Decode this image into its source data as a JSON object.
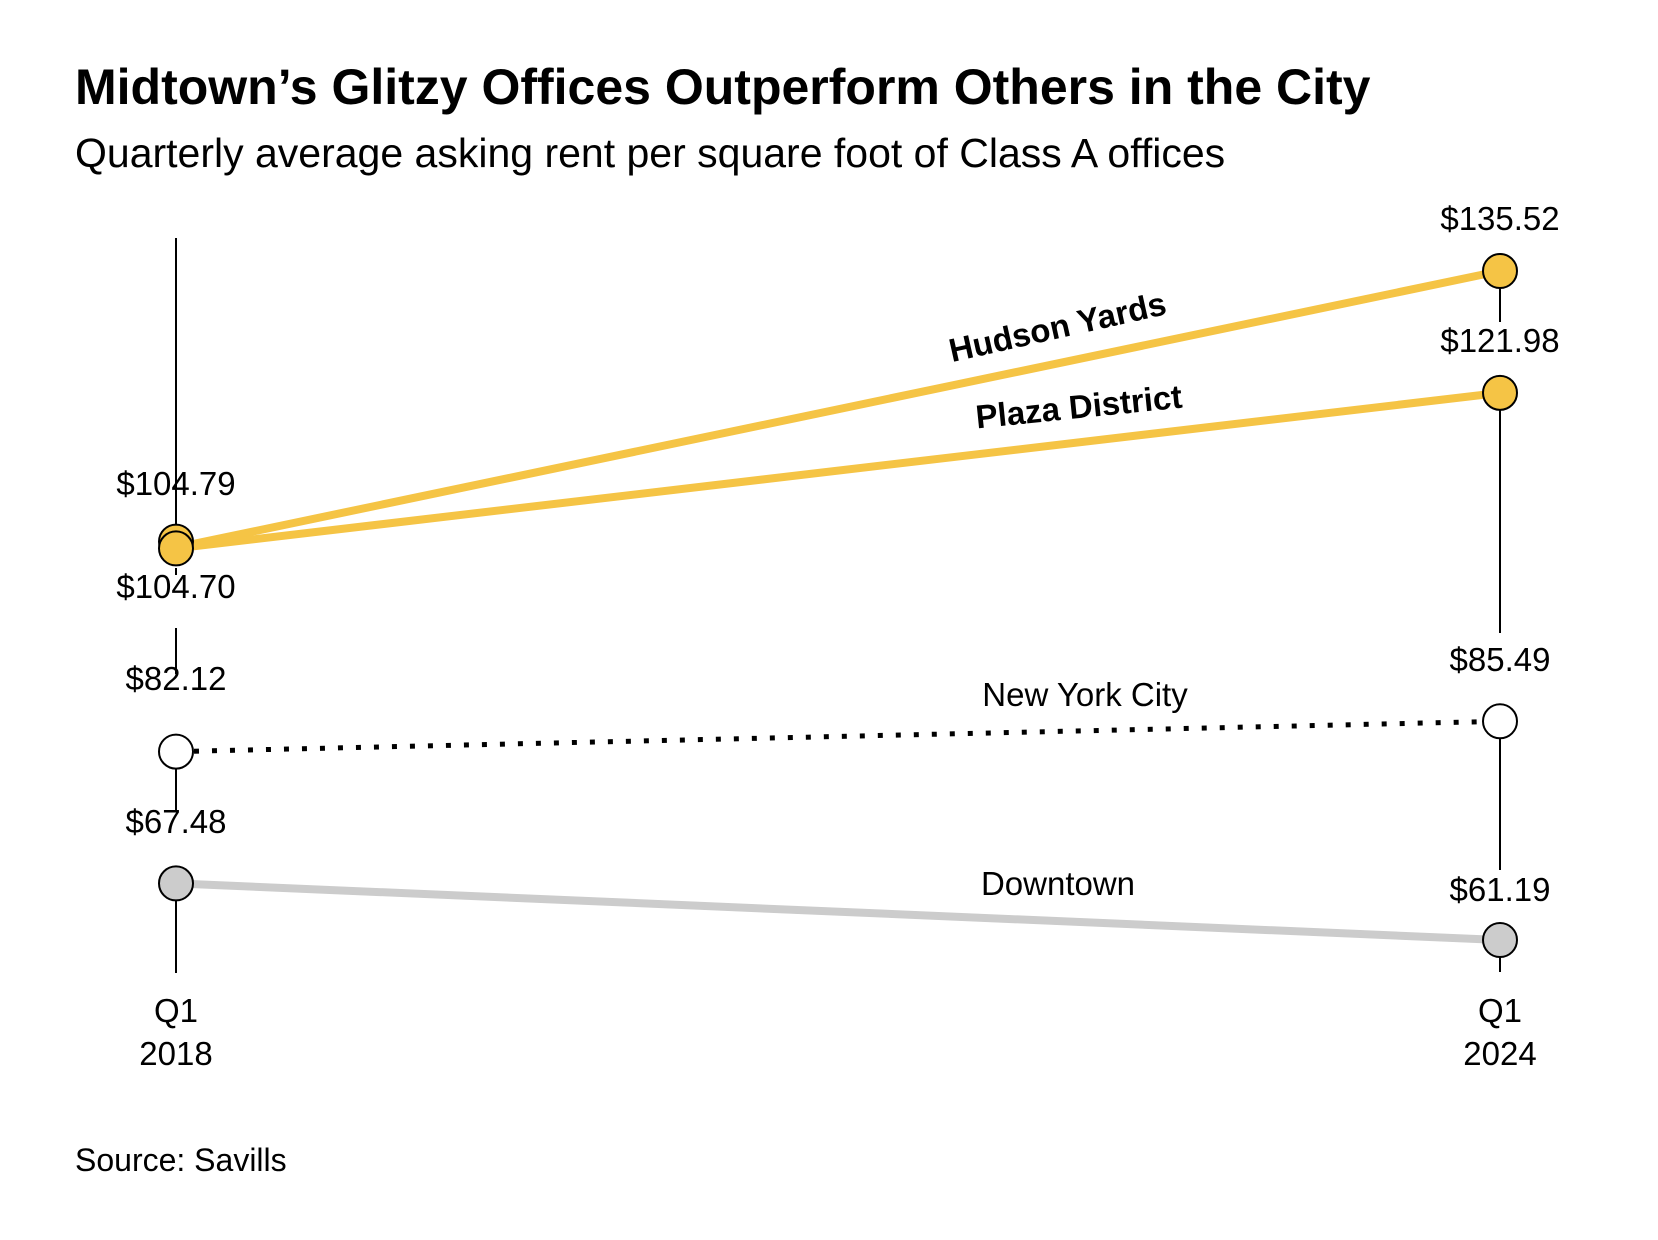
{
  "chart_data": {
    "type": "line",
    "title": "Midtown’s Glitzy Offices Outperform Others in the City",
    "subtitle": "Quarterly average asking rent per square foot of Class A offices",
    "source": "Source: Savills",
    "x": [
      "Q1 2018",
      "Q1 2024"
    ],
    "x_tick_labels": [
      {
        "line1": "Q1",
        "line2": "2018"
      },
      {
        "line1": "Q1",
        "line2": "2024"
      }
    ],
    "ylim": [
      61.19,
      135.52
    ],
    "grid": false,
    "series": [
      {
        "name": "Hudson Yards",
        "values": [
          104.79,
          135.52
        ],
        "labels": [
          "$104.79",
          "$135.52"
        ],
        "color": "#F5C445",
        "style": "solid",
        "marker": "#F5C445",
        "label_bold": true
      },
      {
        "name": "Plaza District",
        "values": [
          104.7,
          121.98
        ],
        "labels": [
          "$104.70",
          "$121.98"
        ],
        "color": "#F5C445",
        "style": "solid",
        "marker": "#F5C445",
        "label_bold": true
      },
      {
        "name": "New York City",
        "values": [
          82.12,
          85.49
        ],
        "labels": [
          "$82.12",
          "$85.49"
        ],
        "color": "#000000",
        "style": "dotted",
        "marker": "#FFFFFF",
        "label_bold": false
      },
      {
        "name": "Downtown",
        "values": [
          67.48,
          61.19
        ],
        "labels": [
          "$67.48",
          "$61.19"
        ],
        "color": "#CCCCCC",
        "style": "solid",
        "marker": "#CCCCCC",
        "label_bold": false
      }
    ]
  }
}
